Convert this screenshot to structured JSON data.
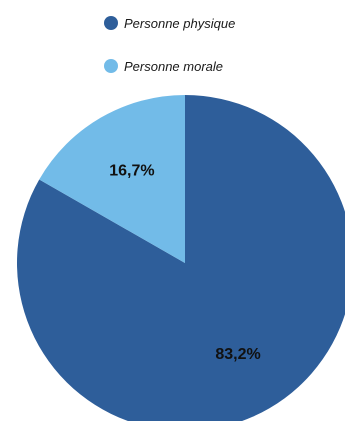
{
  "chart_data": {
    "type": "pie",
    "title": "",
    "categories": [
      "Personne physique",
      "Personne morale"
    ],
    "values": [
      83.2,
      16.7
    ],
    "data_labels": [
      "83,2%",
      "16,7%"
    ],
    "colors": [
      "#2e5e9a",
      "#72bbe8"
    ],
    "start_angle_deg": 0,
    "direction": "clockwise",
    "legend_position": "top"
  },
  "legend": {
    "items": [
      {
        "label": "Personne physique",
        "color": "#2e5e9a"
      },
      {
        "label": "Personne morale",
        "color": "#72bbe8"
      }
    ]
  }
}
